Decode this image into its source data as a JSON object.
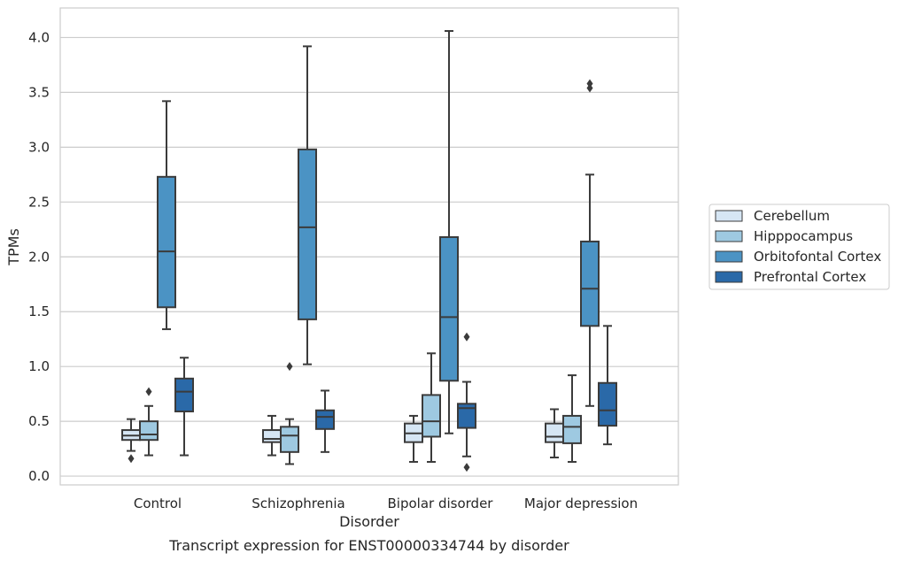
{
  "caption": "Transcript expression for ENST00000334744 by disorder",
  "chart_data": {
    "type": "box",
    "xlabel": "Disorder",
    "ylabel": "TPMs",
    "ylim": [
      -0.08,
      4.27
    ],
    "yticks": [
      0.0,
      0.5,
      1.0,
      1.5,
      2.0,
      2.5,
      3.0,
      3.5,
      4.0
    ],
    "ytick_labels": [
      "0.0",
      "0.5",
      "1.0",
      "1.5",
      "2.0",
      "2.5",
      "3.0",
      "3.5",
      "4.0"
    ],
    "grid": "horizontal",
    "legend_position": "right",
    "categories": [
      "Control",
      "Schizophrenia",
      "Bipolar disorder",
      "Major depression"
    ],
    "series": [
      {
        "name": "Cerebellum",
        "color": "#d6e6f4",
        "boxes": [
          {
            "whislo": 0.23,
            "q1": 0.33,
            "med": 0.37,
            "q3": 0.42,
            "whishi": 0.52,
            "fliers": [
              0.16
            ]
          },
          {
            "whislo": 0.19,
            "q1": 0.31,
            "med": 0.34,
            "q3": 0.42,
            "whishi": 0.55,
            "fliers": []
          },
          {
            "whislo": 0.13,
            "q1": 0.31,
            "med": 0.39,
            "q3": 0.48,
            "whishi": 0.55,
            "fliers": []
          },
          {
            "whislo": 0.17,
            "q1": 0.31,
            "med": 0.36,
            "q3": 0.48,
            "whishi": 0.61,
            "fliers": []
          }
        ]
      },
      {
        "name": "Hipppocampus",
        "color": "#9ec9e1",
        "boxes": [
          {
            "whislo": 0.19,
            "q1": 0.33,
            "med": 0.38,
            "q3": 0.5,
            "whishi": 0.64,
            "fliers": [
              0.77
            ]
          },
          {
            "whislo": 0.11,
            "q1": 0.22,
            "med": 0.37,
            "q3": 0.45,
            "whishi": 0.52,
            "fliers": [
              1.0
            ]
          },
          {
            "whislo": 0.13,
            "q1": 0.36,
            "med": 0.5,
            "q3": 0.74,
            "whishi": 1.12,
            "fliers": []
          },
          {
            "whislo": 0.13,
            "q1": 0.3,
            "med": 0.45,
            "q3": 0.55,
            "whishi": 0.92,
            "fliers": []
          }
        ]
      },
      {
        "name": "Orbitofontal Cortex",
        "color": "#4b93c4",
        "boxes": [
          {
            "whislo": 1.34,
            "q1": 1.54,
            "med": 2.05,
            "q3": 2.73,
            "whishi": 3.42,
            "fliers": []
          },
          {
            "whislo": 1.02,
            "q1": 1.43,
            "med": 2.27,
            "q3": 2.98,
            "whishi": 3.92,
            "fliers": []
          },
          {
            "whislo": 0.39,
            "q1": 0.87,
            "med": 1.45,
            "q3": 2.18,
            "whishi": 4.06,
            "fliers": []
          },
          {
            "whislo": 0.64,
            "q1": 1.37,
            "med": 1.71,
            "q3": 2.14,
            "whishi": 2.75,
            "fliers": [
              3.54,
              3.58
            ]
          }
        ]
      },
      {
        "name": "Prefrontal Cortex",
        "color": "#2a69a8",
        "boxes": [
          {
            "whislo": 0.19,
            "q1": 0.59,
            "med": 0.77,
            "q3": 0.89,
            "whishi": 1.08,
            "fliers": []
          },
          {
            "whislo": 0.22,
            "q1": 0.43,
            "med": 0.54,
            "q3": 0.6,
            "whishi": 0.78,
            "fliers": []
          },
          {
            "whislo": 0.18,
            "q1": 0.44,
            "med": 0.62,
            "q3": 0.66,
            "whishi": 0.86,
            "fliers": [
              0.08,
              1.27
            ]
          },
          {
            "whislo": 0.29,
            "q1": 0.46,
            "med": 0.6,
            "q3": 0.85,
            "whishi": 1.37,
            "fliers": []
          }
        ]
      }
    ]
  }
}
